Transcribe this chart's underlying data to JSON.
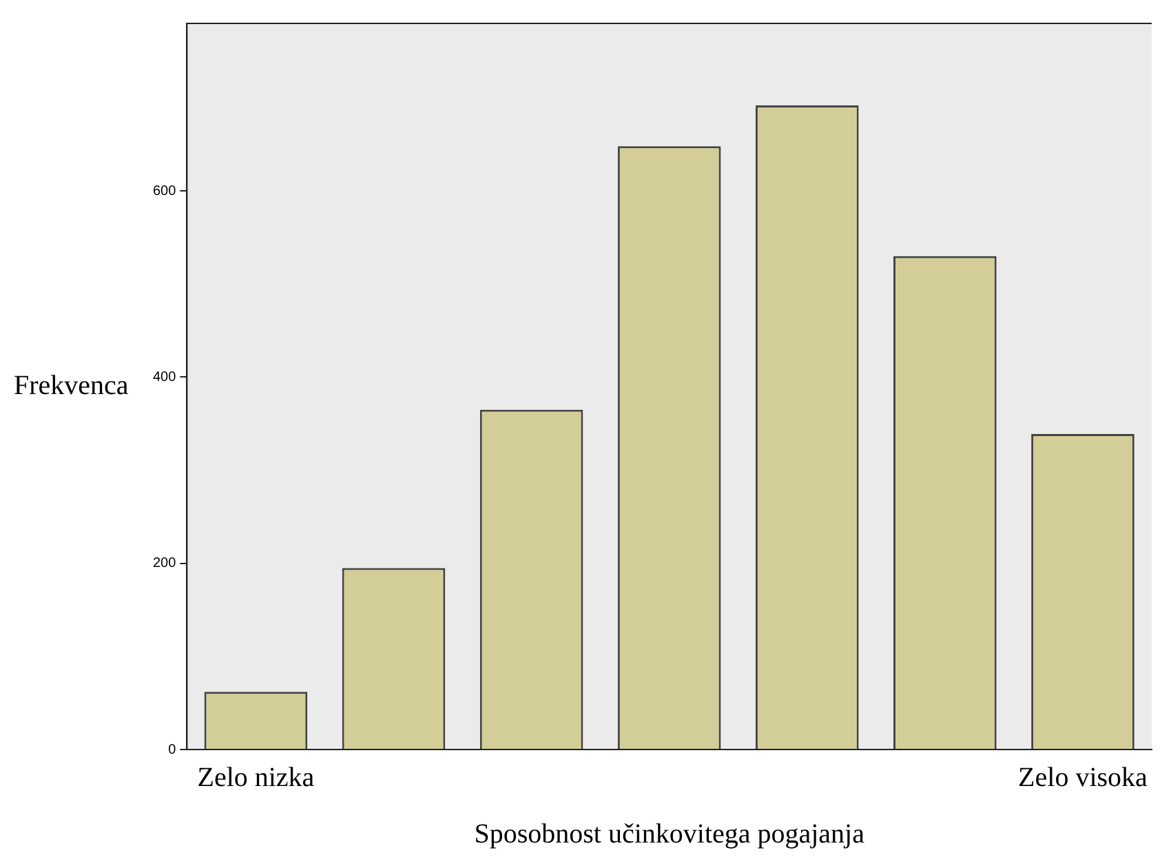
{
  "chart_data": {
    "type": "bar",
    "xlabel": "Sposobnost učinkovitega pogajanja",
    "ylabel": "Frekvenca",
    "categories": [
      "Zelo nizka",
      null,
      null,
      null,
      null,
      null,
      "Zelo visoka"
    ],
    "values": [
      62,
      195,
      365,
      648,
      692,
      530,
      339
    ],
    "color": "#d3ce97",
    "ylim": [
      0,
      780
    ],
    "yticks": [
      0,
      200,
      400,
      600
    ],
    "grid": false,
    "legend": false
  }
}
